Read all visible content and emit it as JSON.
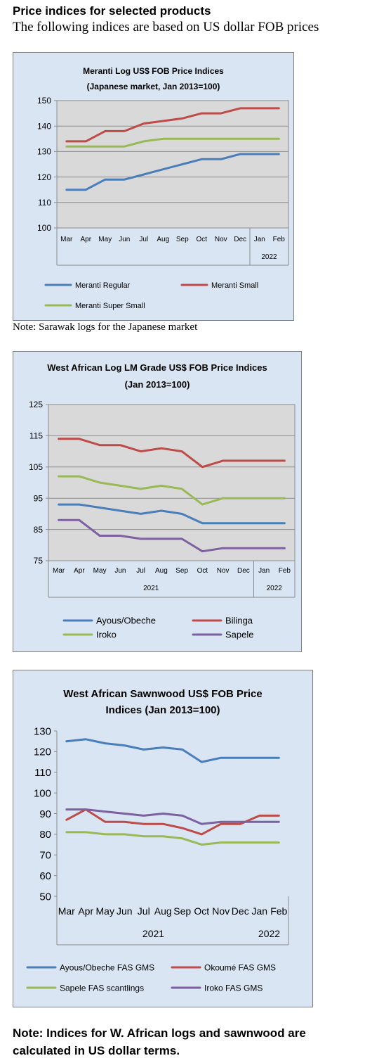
{
  "page": {
    "heading": "Price indices for selected products",
    "subheading": "The following indices are based on US dollar FOB prices",
    "note1": "Note: Sarawak logs for the Japanese market",
    "note2": "Note: Indices for W. African logs and sawnwood are calculated in US dollar terms."
  },
  "chart_data": [
    {
      "type": "line",
      "title": "Meranti Log US$ FOB Price Indices",
      "subtitle": "(Japanese market, Jan 2013=100)",
      "categories": [
        "Mar",
        "Apr",
        "May",
        "Jun",
        "Jul",
        "Aug",
        "Sep",
        "Oct",
        "Nov",
        "Dec",
        "Jan",
        "Feb"
      ],
      "year_labels": [
        "",
        "2022"
      ],
      "ylim": [
        100,
        150
      ],
      "yticks": [
        100,
        110,
        120,
        130,
        140,
        150
      ],
      "grid": true,
      "legend": "bottom",
      "series": [
        {
          "name": "Meranti Regular",
          "color": "#4a7ebb",
          "values": [
            115,
            115,
            119,
            119,
            121,
            123,
            125,
            127,
            127,
            129,
            129,
            129
          ]
        },
        {
          "name": "Meranti Small",
          "color": "#be4b48",
          "values": [
            134,
            134,
            138,
            138,
            141,
            142,
            143,
            145,
            145,
            147,
            147,
            147
          ]
        },
        {
          "name": "Meranti Super Small",
          "color": "#98b954",
          "values": [
            132,
            132,
            132,
            132,
            134,
            135,
            135,
            135,
            135,
            135,
            135,
            135
          ]
        }
      ]
    },
    {
      "type": "line",
      "title": "West African Log LM Grade US$ FOB Price Indices",
      "subtitle": "(Jan 2013=100)",
      "categories": [
        "Mar",
        "Apr",
        "May",
        "Jun",
        "Jul",
        "Aug",
        "Sep",
        "Oct",
        "Nov",
        "Dec",
        "Jan",
        "Feb"
      ],
      "year_labels": [
        "2021",
        "2022"
      ],
      "ylim": [
        75,
        125
      ],
      "yticks": [
        75,
        85,
        95,
        105,
        115,
        125
      ],
      "grid": true,
      "legend": "bottom",
      "series": [
        {
          "name": "Ayous/Obeche",
          "color": "#4a7ebb",
          "values": [
            93,
            93,
            92,
            91,
            90,
            91,
            90,
            87,
            87,
            87,
            87,
            87
          ]
        },
        {
          "name": "Bilinga",
          "color": "#be4b48",
          "values": [
            114,
            114,
            112,
            112,
            110,
            111,
            110,
            105,
            107,
            107,
            107,
            107
          ]
        },
        {
          "name": "Iroko",
          "color": "#98b954",
          "values": [
            102,
            102,
            100,
            99,
            98,
            99,
            98,
            93,
            95,
            95,
            95,
            95
          ]
        },
        {
          "name": "Sapele",
          "color": "#7d60a0",
          "values": [
            88,
            88,
            83,
            83,
            82,
            82,
            82,
            78,
            79,
            79,
            79,
            79
          ]
        }
      ]
    },
    {
      "type": "line",
      "title": "West African Sawnwood US$ FOB Price",
      "subtitle": "Indices (Jan 2013=100)",
      "categories": [
        "Mar",
        "Apr",
        "May",
        "Jun",
        "Jul",
        "Aug",
        "Sep",
        "Oct",
        "Nov",
        "Dec",
        "Jan",
        "Feb"
      ],
      "year_labels": [
        "2021",
        "2022"
      ],
      "ylim": [
        50,
        130
      ],
      "yticks": [
        50,
        60,
        70,
        80,
        90,
        100,
        110,
        120,
        130
      ],
      "grid": false,
      "legend": "bottom",
      "series": [
        {
          "name": "Ayous/Obeche FAS GMS",
          "color": "#4a7ebb",
          "values": [
            125,
            126,
            124,
            123,
            121,
            122,
            121,
            115,
            117,
            117,
            117,
            117
          ]
        },
        {
          "name": "Okoumé  FAS GMS",
          "color": "#be4b48",
          "values": [
            87,
            92,
            86,
            86,
            85,
            85,
            83,
            80,
            85,
            85,
            89,
            89
          ]
        },
        {
          "name": "Sapele FAS scantlings",
          "color": "#98b954",
          "values": [
            81,
            81,
            80,
            80,
            79,
            79,
            78,
            75,
            76,
            76,
            76,
            76
          ]
        },
        {
          "name": "Iroko FAS GMS",
          "color": "#7d60a0",
          "values": [
            92,
            92,
            91,
            90,
            89,
            90,
            89,
            85,
            86,
            86,
            86,
            86
          ]
        }
      ]
    }
  ]
}
